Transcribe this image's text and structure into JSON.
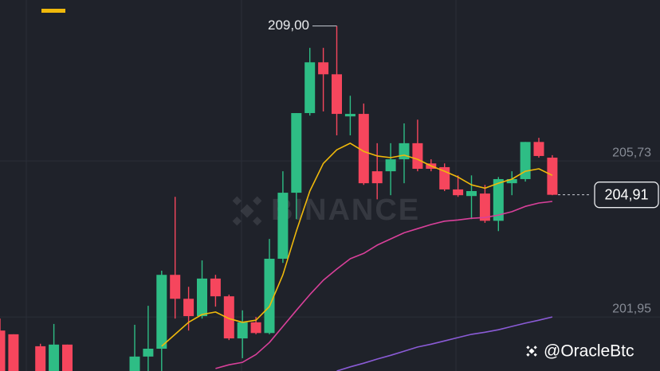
{
  "chart_data": {
    "type": "candlestick",
    "watermark": "BINANCE",
    "credit": "@OracleBtc",
    "ylim": [
      200.64,
      209.63
    ],
    "yticks": [
      {
        "value": 205.73,
        "label": "205,73"
      },
      {
        "value": 201.95,
        "label": "201,95"
      }
    ],
    "grid": true,
    "up_color": "#2ebd85",
    "down_color": "#f6465d",
    "open": [
      201.62,
      201.53,
      null,
      201.24,
      200.5,
      201.28,
      null,
      null,
      null,
      null,
      200.5,
      200.99,
      201.18,
      202.97,
      202.39,
      201.97,
      202.88,
      202.45,
      201.43,
      201.82,
      201.56,
      203.36,
      204.96,
      206.89,
      208.12,
      207.83,
      206.81,
      206.87,
      205.48,
      205.48,
      205.77,
      206.16,
      205.67,
      205.58,
      205.04,
      204.88,
      204.94,
      204.28,
      205.19,
      205.29,
      206.19,
      205.81
    ],
    "high": [
      201.91,
      201.53,
      null,
      201.3,
      201.78,
      201.28,
      null,
      null,
      null,
      null,
      201.76,
      202.22,
      203.07,
      204.86,
      202.68,
      203.32,
      202.97,
      202.49,
      202.11,
      201.95,
      203.84,
      205.48,
      206.89,
      208.47,
      208.47,
      209.0,
      207.31,
      207.12,
      206.16,
      206.16,
      206.64,
      206.73,
      205.77,
      205.67,
      205.38,
      205.38,
      205.15,
      205.34,
      205.48,
      206.19,
      206.29,
      205.87
    ],
    "low": [
      200.4,
      200.4,
      null,
      200.4,
      200.4,
      200.4,
      null,
      null,
      null,
      null,
      200.4,
      200.4,
      200.6,
      201.91,
      201.62,
      201.91,
      202.2,
      201.39,
      200.95,
      201.53,
      201.53,
      203.26,
      204.32,
      206.83,
      206.93,
      206.35,
      206.35,
      205.15,
      204.8,
      204.9,
      205.19,
      205.48,
      205.48,
      205.0,
      204.86,
      204.32,
      204.23,
      204.03,
      204.9,
      205.23,
      205.81,
      204.9
    ],
    "close": [
      200.5,
      200.5,
      null,
      200.5,
      201.28,
      200.5,
      null,
      null,
      null,
      null,
      200.99,
      201.18,
      202.97,
      202.39,
      201.97,
      202.88,
      202.45,
      201.43,
      201.82,
      201.56,
      203.36,
      204.96,
      206.89,
      208.12,
      207.83,
      206.87,
      206.87,
      205.19,
      205.19,
      205.77,
      206.16,
      205.54,
      205.54,
      205.04,
      204.9,
      205.0,
      204.28,
      205.29,
      205.29,
      206.19,
      205.85,
      204.91
    ],
    "series": [
      {
        "color": "#f0b90b",
        "values": [
          null,
          null,
          null,
          null,
          null,
          null,
          null,
          null,
          null,
          null,
          null,
          null,
          201.24,
          201.53,
          201.82,
          202.01,
          202.07,
          201.91,
          201.82,
          201.87,
          202.2,
          202.97,
          204.03,
          205.0,
          205.67,
          206.0,
          206.16,
          205.96,
          205.85,
          205.81,
          205.87,
          205.77,
          205.61,
          205.48,
          205.34,
          205.15,
          205.07,
          205.19,
          205.29,
          205.48,
          205.54,
          205.38
        ]
      },
      {
        "color": "#d9409a",
        "values": [
          null,
          null,
          null,
          null,
          null,
          null,
          null,
          null,
          null,
          null,
          null,
          null,
          null,
          null,
          null,
          null,
          200.7,
          200.79,
          200.85,
          201.04,
          201.33,
          201.72,
          202.11,
          202.49,
          202.84,
          203.11,
          203.36,
          203.49,
          203.69,
          203.84,
          203.99,
          204.09,
          204.19,
          204.27,
          204.3,
          204.34,
          204.36,
          204.42,
          204.5,
          204.63,
          204.71,
          204.75
        ]
      },
      {
        "color": "#8a5bd6",
        "values": [
          null,
          null,
          null,
          null,
          null,
          null,
          null,
          null,
          null,
          null,
          null,
          null,
          null,
          null,
          null,
          null,
          null,
          null,
          null,
          null,
          null,
          null,
          null,
          null,
          null,
          200.64,
          200.74,
          200.83,
          200.93,
          201.02,
          201.12,
          201.22,
          201.29,
          201.37,
          201.45,
          201.53,
          201.58,
          201.64,
          201.72,
          201.8,
          201.87,
          201.95
        ]
      }
    ],
    "annotations": [
      {
        "text": "209,00",
        "value": 209.0
      },
      {
        "text": "204,91",
        "value": 204.91
      }
    ]
  }
}
